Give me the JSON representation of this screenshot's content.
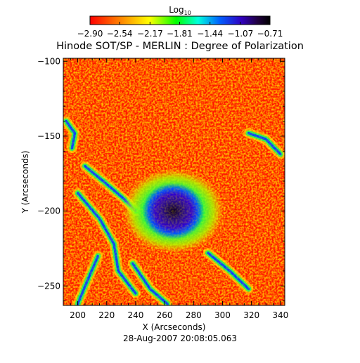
{
  "chart_data": {
    "type": "heatmap",
    "title": "Hinode SOT/SP - MERLIN : Degree of Polarization",
    "xlabel": "X (Arcseconds)",
    "ylabel": "Y (Arcseconds)",
    "footer": "28-Aug-2007 20:08:05.063",
    "colorbar": {
      "title_base": "Log",
      "title_sub": "10",
      "range": [
        -2.9,
        -0.71
      ],
      "tick_labels": [
        "-2.90",
        "-2.54",
        "-2.17",
        "-1.81",
        "-1.44",
        "-1.07",
        "-0.71"
      ],
      "tick_values": [
        -2.9,
        -2.54,
        -2.17,
        -1.81,
        -1.44,
        -1.07,
        -0.71
      ]
    },
    "xlim": [
      190,
      343
    ],
    "ylim": [
      -263,
      -98
    ],
    "x_ticks": [
      200,
      220,
      240,
      260,
      280,
      300,
      320,
      340
    ],
    "y_ticks": [
      -250,
      -200,
      -150,
      -100
    ],
    "x_tick_labels": [
      "200",
      "220",
      "240",
      "260",
      "280",
      "300",
      "320",
      "340"
    ],
    "y_tick_labels": [
      "-250",
      "-200",
      "-150",
      "-100"
    ],
    "features": {
      "sunspot_umbra_center": [
        266,
        -200
      ],
      "umbra_value": -0.71,
      "background_value": -2.9
    },
    "colors": {
      "low": "#ff0000",
      "mid_low": "#ffff00",
      "mid": "#00ff66",
      "mid_high": "#0055ff",
      "high": "#000000"
    }
  }
}
